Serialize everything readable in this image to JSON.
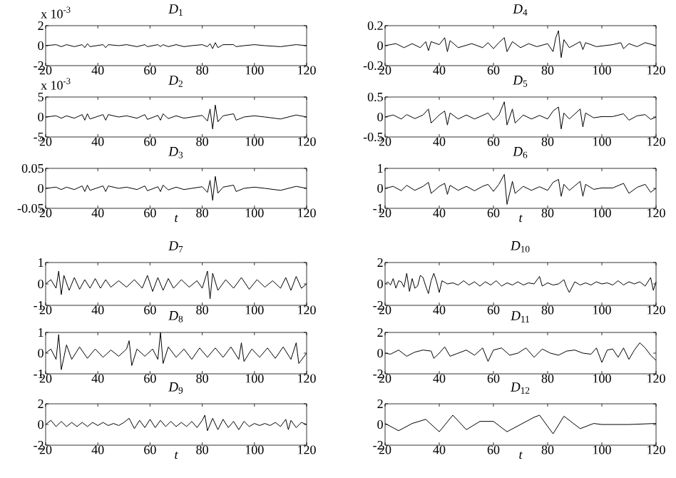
{
  "chart_data": [
    {
      "type": "line",
      "title": "*D*$_{1}$",
      "annotations": [
        "x 10$^{-3}$"
      ],
      "color": "#000000",
      "xlim": [
        20,
        120
      ],
      "xticks": [
        20,
        40,
        60,
        80,
        100,
        120
      ],
      "ylim": [
        -2,
        2
      ],
      "yticks": [
        -2,
        0,
        2
      ],
      "x": [
        20,
        24,
        26,
        28,
        31,
        34,
        35,
        36,
        37,
        42,
        43,
        44,
        48,
        51,
        55,
        58,
        59,
        63,
        64,
        65,
        67,
        70,
        73,
        76,
        80,
        82,
        83,
        84,
        85,
        86,
        88,
        92,
        93,
        96,
        100,
        104,
        110,
        116,
        120
      ],
      "values": [
        0,
        0.1,
        -0.1,
        0.1,
        -0.1,
        0.1,
        -0.2,
        0.2,
        -0.1,
        0.1,
        -0.2,
        0.1,
        0,
        0.1,
        -0.1,
        0.1,
        -0.1,
        0.1,
        -0.1,
        0.1,
        -0.1,
        0.1,
        -0.1,
        0,
        0.1,
        -0.1,
        0.2,
        -0.3,
        0.3,
        -0.2,
        0.1,
        0.1,
        -0.1,
        0,
        0.1,
        0,
        -0.1,
        0.1,
        0
      ]
    },
    {
      "type": "line",
      "title": "*D*$_{2}$",
      "annotations": [
        "x 10$^{-3}$"
      ],
      "color": "#000000",
      "xlim": [
        20,
        120
      ],
      "xticks": [
        20,
        40,
        60,
        80,
        100,
        120
      ],
      "ylim": [
        -5,
        5
      ],
      "yticks": [
        -5,
        0,
        5
      ],
      "x": [
        20,
        24,
        26,
        28,
        31,
        34,
        35,
        36,
        37,
        42,
        43,
        44,
        48,
        51,
        55,
        58,
        59,
        63,
        64,
        65,
        67,
        70,
        73,
        76,
        80,
        82,
        83,
        84,
        85,
        86,
        88,
        92,
        93,
        96,
        100,
        104,
        110,
        116,
        120
      ],
      "values": [
        0,
        0.3,
        -0.3,
        0.3,
        -0.3,
        0.6,
        -0.8,
        0.8,
        -0.5,
        0.6,
        -0.8,
        0.6,
        0,
        0.3,
        -0.3,
        0.6,
        -0.6,
        0.4,
        -0.8,
        0.8,
        -0.4,
        0.3,
        -0.3,
        0,
        0.4,
        -1,
        2,
        -3,
        3,
        -1.2,
        0.3,
        0.8,
        -0.8,
        0,
        0.3,
        0,
        -0.5,
        0.5,
        0
      ]
    },
    {
      "type": "line",
      "title": "*D*$_{3}$",
      "xlabel": "t",
      "color": "#000000",
      "xlim": [
        20,
        120
      ],
      "xticks": [
        20,
        40,
        60,
        80,
        100,
        120
      ],
      "ylim": [
        -0.05,
        0.05
      ],
      "yticks": [
        -0.05,
        0,
        0.05
      ],
      "x": [
        20,
        24,
        26,
        28,
        31,
        34,
        35,
        36,
        37,
        42,
        43,
        44,
        48,
        51,
        55,
        58,
        59,
        63,
        64,
        65,
        67,
        70,
        73,
        76,
        80,
        82,
        83,
        84,
        85,
        86,
        88,
        92,
        93,
        96,
        100,
        104,
        110,
        116,
        120
      ],
      "values": [
        0,
        0.003,
        -0.003,
        0.003,
        -0.003,
        0.006,
        -0.008,
        0.008,
        -0.005,
        0.006,
        -0.008,
        0.006,
        0,
        0.003,
        -0.003,
        0.006,
        -0.006,
        0.004,
        -0.008,
        0.008,
        -0.004,
        0.003,
        -0.003,
        0,
        0.004,
        -0.01,
        0.02,
        -0.03,
        0.03,
        -0.012,
        0.003,
        0.008,
        -0.008,
        0,
        0.003,
        0,
        -0.005,
        0.005,
        0
      ]
    },
    {
      "type": "line",
      "title": "*D*$_{4}$",
      "color": "#000000",
      "xlim": [
        20,
        120
      ],
      "xticks": [
        20,
        40,
        60,
        80,
        100,
        120
      ],
      "ylim": [
        -0.2,
        0.2
      ],
      "yticks": [
        -0.2,
        0,
        0.2
      ],
      "x": [
        20,
        24,
        27,
        30,
        33,
        35,
        36,
        37,
        40,
        42,
        43,
        44,
        47,
        52,
        56,
        58,
        60,
        62,
        64,
        65,
        67,
        70,
        73,
        76,
        80,
        82,
        83,
        84,
        85,
        86,
        88,
        92,
        93,
        94,
        98,
        104,
        107,
        108,
        110,
        113,
        116,
        120
      ],
      "values": [
        0,
        0.02,
        -0.02,
        0.02,
        -0.02,
        0.04,
        -0.05,
        0.04,
        0.01,
        0.08,
        -0.06,
        0.05,
        -0.02,
        0.02,
        -0.02,
        0.03,
        -0.03,
        0.03,
        0.08,
        -0.06,
        0.04,
        -0.02,
        0.02,
        -0.01,
        0.02,
        -0.06,
        0.08,
        0.15,
        -0.12,
        0.06,
        -0.02,
        0.04,
        -0.04,
        0.03,
        -0.01,
        0.01,
        0.03,
        -0.03,
        0.02,
        -0.01,
        0.03,
        0
      ]
    },
    {
      "type": "line",
      "title": "*D*$_{5}$",
      "color": "#000000",
      "xlim": [
        20,
        120
      ],
      "xticks": [
        20,
        40,
        60,
        80,
        100,
        120
      ],
      "ylim": [
        -0.5,
        0.5
      ],
      "yticks": [
        -0.5,
        0,
        0.5
      ],
      "x": [
        20,
        23,
        26,
        28,
        31,
        34,
        36,
        37,
        40,
        42,
        43,
        44,
        47,
        50,
        53,
        56,
        58,
        60,
        62,
        64,
        65,
        67,
        68,
        71,
        74,
        77,
        80,
        82,
        84,
        85,
        86,
        88,
        92,
        93,
        94,
        97,
        100,
        104,
        108,
        110,
        113,
        116,
        118,
        120
      ],
      "values": [
        0,
        0.05,
        -0.05,
        0.06,
        -0.04,
        0.05,
        0.2,
        -0.15,
        0.05,
        0.15,
        -0.2,
        0.1,
        -0.05,
        0.05,
        -0.05,
        0.04,
        0.1,
        -0.08,
        0.05,
        0.38,
        -0.2,
        0.2,
        -0.15,
        0.05,
        -0.05,
        0.04,
        -0.05,
        0.15,
        0.25,
        -0.3,
        0.1,
        -0.05,
        0.2,
        -0.25,
        0.1,
        -0.02,
        0.01,
        0.01,
        0.08,
        -0.08,
        0.03,
        0.06,
        -0.06,
        0
      ]
    },
    {
      "type": "line",
      "title": "*D*$_{6}$",
      "xlabel": "t",
      "color": "#000000",
      "xlim": [
        20,
        120
      ],
      "xticks": [
        20,
        40,
        60,
        80,
        100,
        120
      ],
      "ylim": [
        -1,
        1
      ],
      "yticks": [
        -1,
        0,
        1
      ],
      "x": [
        20,
        23,
        26,
        28,
        31,
        34,
        36,
        37,
        40,
        42,
        43,
        44,
        47,
        50,
        53,
        56,
        58,
        60,
        62,
        64,
        65,
        67,
        68,
        71,
        74,
        77,
        80,
        82,
        84,
        85,
        86,
        88,
        92,
        93,
        94,
        97,
        100,
        104,
        108,
        110,
        113,
        116,
        118,
        120
      ],
      "values": [
        0,
        0.1,
        -0.12,
        0.15,
        -0.1,
        0.1,
        0.3,
        -0.25,
        0.1,
        0.25,
        -0.3,
        0.15,
        -0.1,
        0.1,
        -0.12,
        0.1,
        0.2,
        -0.15,
        0.2,
        0.7,
        -0.8,
        0.35,
        -0.25,
        0.1,
        -0.1,
        0.08,
        -0.1,
        0.3,
        0.45,
        -0.4,
        0.2,
        -0.1,
        0.35,
        -0.4,
        0.2,
        -0.05,
        0.02,
        0.02,
        0.25,
        -0.25,
        0.05,
        0.2,
        -0.2,
        0
      ]
    },
    {
      "type": "line",
      "title": "*D*$_{7}$",
      "color": "#000000",
      "xlim": [
        20,
        120
      ],
      "xticks": [
        20,
        40,
        60,
        80,
        100,
        120
      ],
      "ylim": [
        -1,
        1
      ],
      "yticks": [
        -1,
        0,
        1
      ],
      "x": [
        20,
        22,
        24,
        25,
        26,
        27,
        29,
        31,
        33,
        35,
        37,
        39,
        41,
        43,
        45,
        48,
        51,
        54,
        57,
        59,
        61,
        63,
        65,
        67,
        69,
        72,
        75,
        78,
        80,
        82,
        83,
        84,
        86,
        89,
        92,
        95,
        98,
        101,
        104,
        107,
        110,
        112,
        114,
        116,
        118,
        120
      ],
      "values": [
        0,
        0.2,
        -0.2,
        0.6,
        -0.5,
        0.4,
        -0.3,
        0.3,
        -0.25,
        0.2,
        -0.2,
        0.25,
        -0.2,
        0.2,
        -0.15,
        0.15,
        -0.15,
        0.2,
        -0.2,
        0.4,
        -0.35,
        0.3,
        -0.3,
        0.25,
        -0.2,
        0.2,
        -0.15,
        0.15,
        -0.2,
        0.6,
        -0.7,
        0.5,
        -0.3,
        0.2,
        -0.2,
        0.3,
        -0.25,
        0.2,
        -0.15,
        0.15,
        -0.2,
        0.3,
        -0.3,
        0.35,
        -0.2,
        0
      ]
    },
    {
      "type": "line",
      "title": "*D*$_{8}$",
      "color": "#000000",
      "xlim": [
        20,
        120
      ],
      "xticks": [
        20,
        40,
        60,
        80,
        100,
        120
      ],
      "ylim": [
        -1,
        1
      ],
      "yticks": [
        -1,
        0,
        1
      ],
      "x": [
        20,
        22,
        24,
        25,
        26,
        28,
        30,
        33,
        36,
        39,
        42,
        45,
        48,
        51,
        52,
        53,
        55,
        58,
        61,
        63,
        64,
        65,
        67,
        70,
        73,
        76,
        79,
        82,
        85,
        88,
        91,
        94,
        95,
        96,
        99,
        102,
        105,
        108,
        111,
        114,
        116,
        117,
        120
      ],
      "values": [
        0,
        0.2,
        -0.3,
        0.9,
        -0.8,
        0.4,
        -0.3,
        0.3,
        -0.25,
        0.2,
        -0.2,
        0.15,
        -0.15,
        0.2,
        0.6,
        -0.6,
        0.2,
        -0.15,
        0.2,
        -0.3,
        1,
        -0.5,
        0.3,
        -0.2,
        0.2,
        -0.3,
        0.25,
        -0.2,
        0.25,
        -0.2,
        0.3,
        -0.3,
        0.5,
        -0.4,
        0.2,
        -0.2,
        0.25,
        -0.25,
        0.3,
        -0.3,
        0.5,
        -0.5,
        0
      ]
    },
    {
      "type": "line",
      "title": "*D*$_{9}$",
      "xlabel": "t",
      "color": "#000000",
      "xlim": [
        20,
        120
      ],
      "xticks": [
        20,
        40,
        60,
        80,
        100,
        120
      ],
      "ylim": [
        -2,
        2
      ],
      "yticks": [
        -2,
        0,
        2
      ],
      "x": [
        20,
        22,
        24,
        26,
        28,
        30,
        32,
        34,
        36,
        38,
        40,
        42,
        44,
        46,
        48,
        50,
        52,
        54,
        56,
        58,
        60,
        62,
        64,
        66,
        68,
        70,
        72,
        74,
        76,
        78,
        80,
        81,
        82,
        84,
        86,
        88,
        90,
        92,
        94,
        96,
        98,
        100,
        102,
        104,
        106,
        108,
        110,
        112,
        113,
        114,
        116,
        118,
        120
      ],
      "values": [
        0,
        0.4,
        -0.2,
        0.3,
        -0.2,
        0.2,
        -0.2,
        0.2,
        -0.2,
        0.2,
        -0.1,
        0.2,
        -0.1,
        0.1,
        -0.1,
        0.2,
        0.6,
        -0.4,
        0.4,
        -0.3,
        0.5,
        -0.3,
        0.4,
        -0.2,
        0.3,
        -0.2,
        0.2,
        -0.2,
        0.3,
        -0.3,
        0.4,
        0.9,
        -0.6,
        0.6,
        -0.5,
        0.5,
        -0.3,
        0.3,
        -0.5,
        0.3,
        -0.2,
        0.1,
        -0.1,
        0.1,
        -0.1,
        0.2,
        -0.2,
        0.5,
        -0.5,
        0.4,
        -0.3,
        0.2,
        0
      ]
    },
    {
      "type": "line",
      "title": "*D*$_{10}$",
      "color": "#000000",
      "xlim": [
        20,
        120
      ],
      "xticks": [
        20,
        40,
        60,
        80,
        100,
        120
      ],
      "ylim": [
        -2,
        2
      ],
      "yticks": [
        -2,
        0,
        2
      ],
      "x": [
        20,
        21,
        22,
        23,
        24,
        25,
        26,
        27,
        28,
        29,
        30,
        31,
        32,
        33,
        34,
        35,
        36,
        37,
        38,
        39,
        40,
        41,
        43,
        45,
        47,
        49,
        51,
        53,
        55,
        57,
        59,
        61,
        63,
        65,
        67,
        69,
        71,
        73,
        75,
        77,
        78,
        80,
        82,
        84,
        86,
        87,
        88,
        90,
        92,
        94,
        96,
        98,
        100,
        102,
        104,
        106,
        108,
        110,
        112,
        114,
        116,
        118,
        119,
        120
      ],
      "values": [
        0,
        0.2,
        -0.1,
        0.5,
        -0.4,
        0.3,
        0.2,
        -0.3,
        1,
        -0.7,
        0.5,
        -0.4,
        -0.2,
        0.8,
        0.6,
        -0.2,
        -0.9,
        0.3,
        1,
        0.2,
        -0.8,
        0.3,
        0,
        0.1,
        -0.1,
        0.3,
        -0.1,
        0.2,
        -0.2,
        0.2,
        -0.1,
        0.3,
        -0.2,
        0.1,
        -0.1,
        0.2,
        -0.1,
        0.1,
        0,
        0.7,
        -0.2,
        0.1,
        -0.1,
        0,
        0.4,
        -0.3,
        -0.8,
        0.2,
        -0.1,
        0.1,
        -0.1,
        0.2,
        0,
        0.1,
        -0.1,
        0.3,
        -0.1,
        0.2,
        0,
        0.2,
        -0.2,
        0.6,
        -0.6,
        0.2
      ]
    },
    {
      "type": "line",
      "title": "*D*$_{11}$",
      "color": "#000000",
      "xlim": [
        20,
        120
      ],
      "xticks": [
        20,
        40,
        60,
        80,
        100,
        120
      ],
      "ylim": [
        -2,
        2
      ],
      "yticks": [
        -2,
        0,
        2
      ],
      "x": [
        20,
        22,
        25,
        28,
        31,
        34,
        37,
        38,
        40,
        42,
        44,
        47,
        50,
        53,
        56,
        58,
        60,
        63,
        66,
        69,
        72,
        75,
        78,
        81,
        84,
        87,
        90,
        93,
        96,
        98,
        100,
        102,
        104,
        106,
        108,
        110,
        112,
        114,
        116,
        118,
        120
      ],
      "values": [
        0,
        -0.1,
        0.3,
        -0.3,
        0.1,
        0.3,
        0.2,
        -0.5,
        0,
        0.6,
        -0.3,
        0,
        0.3,
        -0.2,
        0.5,
        -0.8,
        0.3,
        0.5,
        -0.2,
        0,
        0.5,
        -0.4,
        0.4,
        0,
        -0.2,
        0.2,
        0.3,
        0,
        -0.1,
        0.5,
        -0.9,
        0.3,
        0.4,
        -0.4,
        0.5,
        -0.6,
        0.3,
        1,
        0.5,
        -0.2,
        -0.7
      ]
    },
    {
      "type": "line",
      "title": "*D*$_{12}$",
      "xlabel": "t",
      "color": "#000000",
      "xlim": [
        20,
        120
      ],
      "xticks": [
        20,
        40,
        60,
        80,
        100,
        120
      ],
      "ylim": [
        -2,
        2
      ],
      "yticks": [
        -2,
        0,
        2
      ],
      "x": [
        20,
        25,
        30,
        35,
        40,
        45,
        50,
        55,
        60,
        65,
        70,
        75,
        77,
        82,
        86,
        92,
        97,
        100,
        110,
        120
      ],
      "values": [
        0.1,
        -0.6,
        0.1,
        0.5,
        -0.7,
        0.9,
        -0.5,
        0.3,
        0.3,
        -0.7,
        0,
        0.7,
        0.9,
        -0.9,
        0.8,
        -0.4,
        0.1,
        0,
        0,
        0.1
      ]
    }
  ]
}
